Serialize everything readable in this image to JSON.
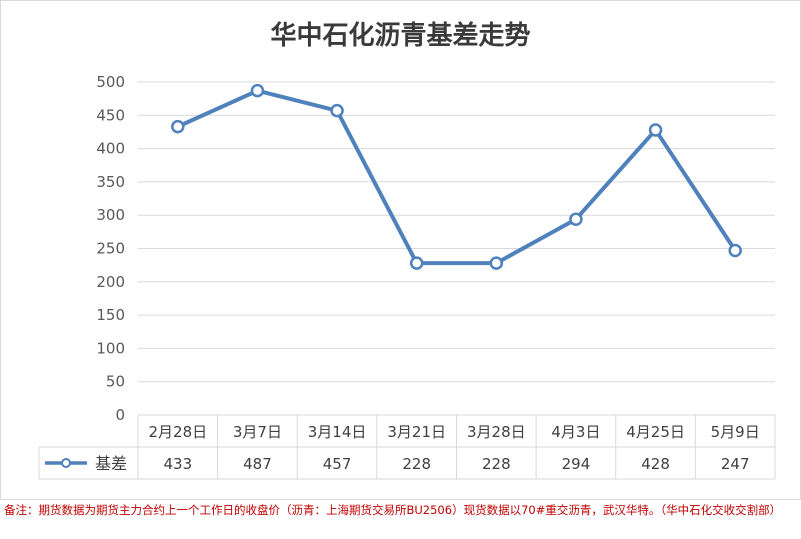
{
  "chart_data": {
    "type": "line",
    "title": "华中石化沥青基差走势",
    "categories": [
      "2月28日",
      "3月7日",
      "3月14日",
      "3月21日",
      "3月28日",
      "4月3日",
      "4月25日",
      "5月9日"
    ],
    "series": [
      {
        "name": "基差",
        "values": [
          433,
          487,
          457,
          228,
          228,
          294,
          428,
          247
        ]
      }
    ],
    "yticks": [
      "0",
      "50",
      "100",
      "150",
      "200",
      "250",
      "300",
      "350",
      "400",
      "450",
      "500"
    ],
    "ylim": [
      0,
      500
    ],
    "grid": true,
    "legend": "data-table-left",
    "data_table": true
  },
  "colors": {
    "series": "#4f81bd",
    "grid": "#d9d9d9",
    "note": "#c00000"
  },
  "note": "备注：期货数据为期货主力合约上一个工作日的收盘价（沥青：上海期货交易所BU2506）现货数据以70#重交沥青，武汉华特。（华中石化交收交割部）"
}
